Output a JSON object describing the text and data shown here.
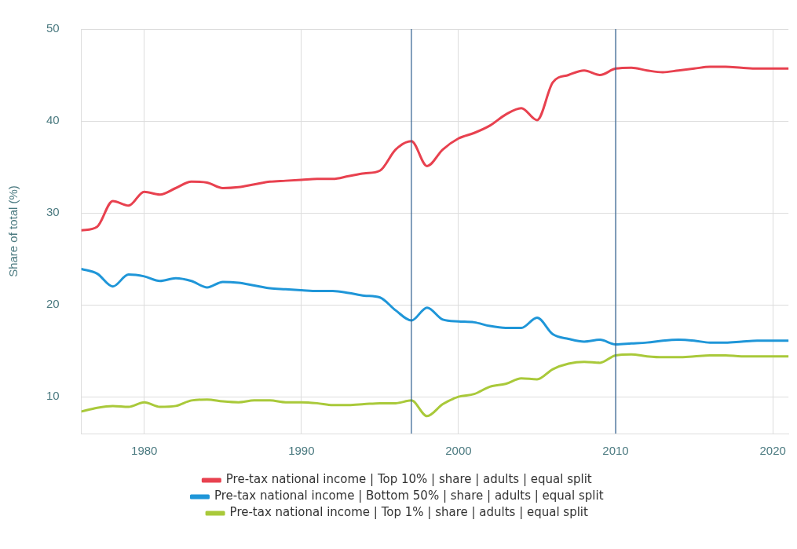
{
  "chart_data": {
    "type": "line",
    "ylabel": "Share of total (%)",
    "x": [
      1976,
      1977,
      1978,
      1979,
      1980,
      1981,
      1982,
      1983,
      1984,
      1985,
      1986,
      1987,
      1988,
      1989,
      1990,
      1991,
      1992,
      1993,
      1994,
      1995,
      1996,
      1997,
      1998,
      1999,
      2000,
      2001,
      2002,
      2003,
      2004,
      2005,
      2006,
      2007,
      2008,
      2009,
      2010,
      2011,
      2012,
      2013,
      2014,
      2015,
      2016,
      2017,
      2018,
      2019,
      2020,
      2021
    ],
    "series": [
      {
        "name": "Pre-tax national income | Top 10% | share | adults | equal split",
        "color": "#e8414f",
        "values": [
          28.1,
          28.5,
          31.3,
          30.8,
          32.3,
          32.0,
          32.7,
          33.4,
          33.3,
          32.7,
          32.8,
          33.1,
          33.4,
          33.5,
          33.6,
          33.7,
          33.7,
          34.0,
          34.3,
          34.6,
          36.9,
          37.8,
          35.1,
          36.9,
          38.1,
          38.7,
          39.5,
          40.7,
          41.4,
          40.1,
          44.2,
          45.0,
          45.5,
          45.0,
          45.7,
          45.8,
          45.5,
          45.3,
          45.5,
          45.7,
          45.9,
          45.9,
          45.8,
          45.7,
          45.7,
          45.7
        ]
      },
      {
        "name": "Pre-tax national income | Bottom 50% | share | adults | equal split",
        "color": "#1f96d8",
        "values": [
          23.9,
          23.4,
          22.0,
          23.3,
          23.1,
          22.6,
          22.9,
          22.6,
          21.9,
          22.5,
          22.4,
          22.1,
          21.8,
          21.7,
          21.6,
          21.5,
          21.5,
          21.3,
          21.0,
          20.8,
          19.4,
          18.3,
          19.7,
          18.4,
          18.2,
          18.1,
          17.7,
          17.5,
          17.5,
          18.6,
          16.8,
          16.3,
          16.0,
          16.2,
          15.7,
          15.8,
          15.9,
          16.1,
          16.2,
          16.1,
          15.9,
          15.9,
          16.0,
          16.1,
          16.1,
          16.1
        ]
      },
      {
        "name": "Pre-tax national income | Top 1% | share | adults | equal split",
        "color": "#a9c93a",
        "values": [
          8.4,
          8.8,
          9.0,
          8.9,
          9.4,
          8.9,
          9.0,
          9.6,
          9.7,
          9.5,
          9.4,
          9.6,
          9.6,
          9.4,
          9.4,
          9.3,
          9.1,
          9.1,
          9.2,
          9.3,
          9.3,
          9.6,
          7.9,
          9.2,
          10.0,
          10.3,
          11.1,
          11.4,
          12.0,
          11.9,
          13.0,
          13.6,
          13.8,
          13.7,
          14.5,
          14.6,
          14.4,
          14.3,
          14.3,
          14.4,
          14.5,
          14.5,
          14.4,
          14.4,
          14.4,
          14.4
        ]
      }
    ],
    "xlim": [
      1976,
      2021
    ],
    "xticks": [
      1980,
      1990,
      2000,
      2010,
      2020
    ],
    "ylim": [
      6,
      50
    ],
    "yticks": [
      10,
      20,
      30,
      40,
      50
    ],
    "ref_lines": [
      {
        "axis": "x",
        "value": 1997,
        "color": "#2f5f8f"
      },
      {
        "axis": "x",
        "value": 2010,
        "color": "#2f5f8f"
      }
    ],
    "grid": true,
    "legend": "bottom",
    "marker": "none",
    "line_style": "solid"
  }
}
